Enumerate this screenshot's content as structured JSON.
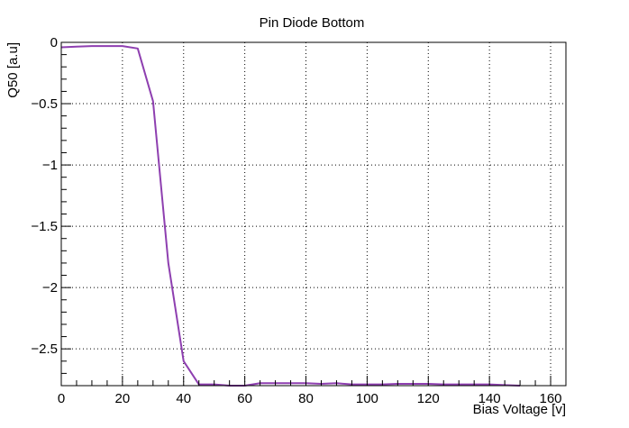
{
  "chart_data": {
    "type": "line",
    "title": "Pin Diode Bottom",
    "xlabel": "Bias Voltage [v]",
    "ylabel": "Q50 [a.u]",
    "xlim": [
      0,
      165
    ],
    "ylim": [
      -2.8,
      0.0
    ],
    "xticks": [
      0,
      20,
      40,
      60,
      80,
      100,
      120,
      140,
      160
    ],
    "xtick_labels": [
      "0",
      "20",
      "40",
      "60",
      "80",
      "100",
      "120",
      "140",
      "160"
    ],
    "yticks": [
      0,
      -0.5,
      -1,
      -1.5,
      -2,
      -2.5
    ],
    "ytick_labels": [
      "0",
      "−0.5",
      "−1",
      "−1.5",
      "−2",
      "−2.5"
    ],
    "grid": true,
    "series": [
      {
        "color": "#8e3fb0",
        "x": [
          0,
          5,
          10,
          15,
          20,
          25,
          30,
          35,
          40,
          45,
          50,
          55,
          60,
          65,
          70,
          75,
          80,
          85,
          90,
          95,
          100,
          105,
          110,
          115,
          120,
          125,
          130,
          135,
          140,
          145,
          150
        ],
        "y": [
          -0.04,
          -0.035,
          -0.03,
          -0.03,
          -0.03,
          -0.05,
          -0.48,
          -1.8,
          -2.6,
          -2.79,
          -2.79,
          -2.8,
          -2.8,
          -2.78,
          -2.78,
          -2.78,
          -2.78,
          -2.785,
          -2.78,
          -2.79,
          -2.79,
          -2.79,
          -2.785,
          -2.785,
          -2.785,
          -2.79,
          -2.79,
          -2.79,
          -2.79,
          -2.795,
          -2.8
        ]
      }
    ]
  }
}
